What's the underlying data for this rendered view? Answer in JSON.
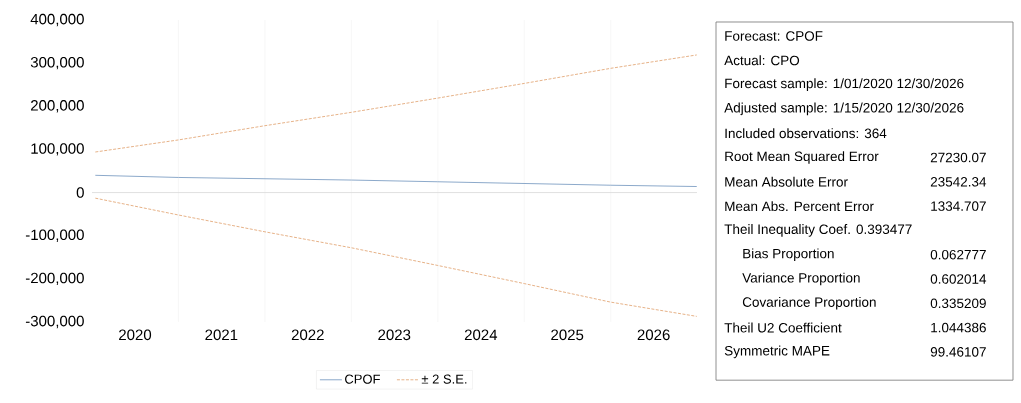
{
  "chart_data": {
    "type": "line",
    "x": [
      "2020-01-15",
      "2021-01-01",
      "2022-01-01",
      "2023-01-01",
      "2024-01-01",
      "2025-01-01",
      "2026-01-01",
      "2026-12-30"
    ],
    "series": [
      {
        "name": "CPOF",
        "color": "#7f9fc4",
        "line_style": "solid",
        "values": [
          40000,
          35000,
          32000,
          29000,
          25000,
          21000,
          17000,
          14000
        ]
      },
      {
        "name": "± 2 S.E.",
        "color": "#e3a97a",
        "line_style": "dashed",
        "values": [
          94000,
          122000,
          155000,
          186000,
          219000,
          253000,
          288000,
          319000
        ]
      },
      {
        "color": "#e3a97a",
        "line_style": "dashed",
        "values": [
          -13000,
          -52000,
          -91000,
          -128000,
          -169000,
          -211000,
          -254000,
          -287000
        ]
      }
    ],
    "xlim": [
      "2020-01-01",
      "2026-12-31"
    ],
    "xticks": [
      {
        "value": "2020-07-01",
        "label": "2020"
      },
      {
        "value": "2021-01-01",
        "label": null
      },
      {
        "value": "2021-07-01",
        "label": "2021"
      },
      {
        "value": "2022-01-01",
        "label": null
      },
      {
        "value": "2022-07-01",
        "label": "2022"
      },
      {
        "value": "2023-01-01",
        "label": null
      },
      {
        "value": "2023-07-01",
        "label": "2023"
      },
      {
        "value": "2024-01-01",
        "label": null
      },
      {
        "value": "2024-07-01",
        "label": "2024"
      },
      {
        "value": "2025-01-01",
        "label": null
      },
      {
        "value": "2025-07-01",
        "label": "2025"
      },
      {
        "value": "2026-01-01",
        "label": null
      },
      {
        "value": "2026-07-01",
        "label": "2026"
      }
    ],
    "ylim": [
      -300000,
      400000
    ],
    "yticks": [
      {
        "value": -300000,
        "label": "-300,000"
      },
      {
        "value": -200000,
        "label": "-200,000"
      },
      {
        "value": -100000,
        "label": "-100,000"
      },
      {
        "value": 0,
        "label": "0"
      },
      {
        "value": 100000,
        "label": "100,000"
      },
      {
        "value": 200000,
        "label": "200,000"
      },
      {
        "value": 300000,
        "label": "300,000"
      },
      {
        "value": 400000,
        "label": "400,000"
      }
    ],
    "grid": "x",
    "legend": "bottom",
    "ref_lines": [
      {
        "axis": "y",
        "value": 0,
        "color": "#d9d9d9"
      }
    ],
    "annotations": [
      "Forecast: CPOF",
      "Actual: CPO",
      "Forecast sample: 1/01/2020 12/30/2026",
      "Adjusted sample: 1/15/2020 12/30/2026",
      "Included observations: 364",
      "Root Mean Squared Error",
      "27230.07",
      "Mean Absolute Error",
      "23542.34",
      "Mean Abs. Percent Error",
      "1334.707",
      "Theil Inequality Coef. 0.393477",
      "Bias Proportion",
      "0.062777",
      "Variance Proportion",
      "0.602014",
      "Covariance Proportion",
      "0.335209",
      "Theil U2 Coefficient",
      "1.044386",
      "Symmetric MAPE",
      "99.46107"
    ]
  }
}
